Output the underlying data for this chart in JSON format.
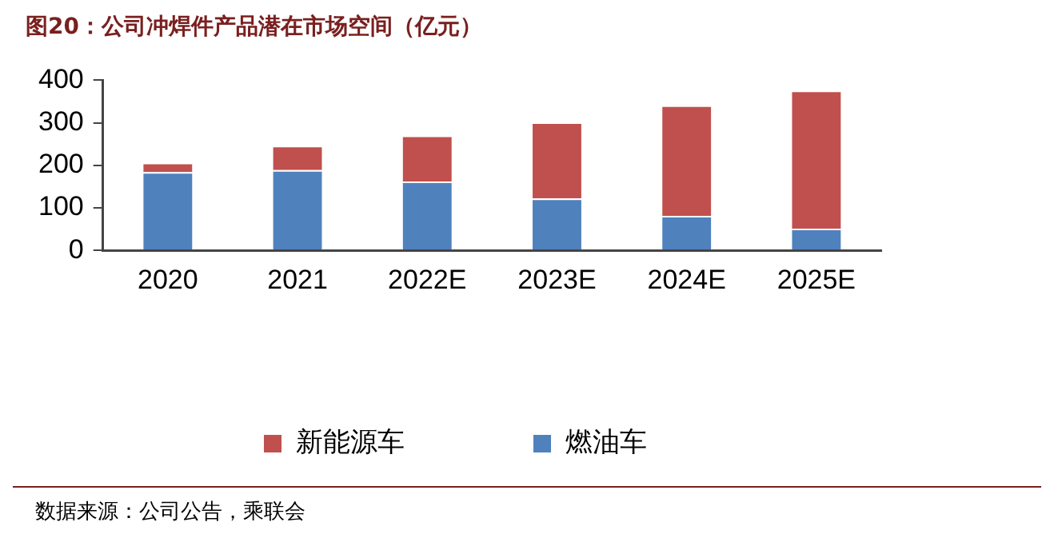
{
  "chart_data": {
    "type": "bar",
    "title": "图20：公司冲焊件产品潜在市场空间（亿元）",
    "categories": [
      "2020",
      "2021",
      "2022E",
      "2023E",
      "2024E",
      "2025E"
    ],
    "series": [
      {
        "name": "燃油车",
        "color": "#4f81bd",
        "values": [
          184,
          189,
          162,
          122,
          81,
          51
        ]
      },
      {
        "name": "新能源车",
        "color": "#c0504d",
        "values": [
          22,
          57,
          108,
          179,
          260,
          325
        ]
      }
    ],
    "stacked": true,
    "ylim": [
      0,
      400
    ],
    "yticks": [
      0,
      100,
      200,
      300,
      400
    ],
    "grid": false,
    "legend": "bottom",
    "annotations": [
      "数据来源：公司公告，乘联会"
    ]
  }
}
